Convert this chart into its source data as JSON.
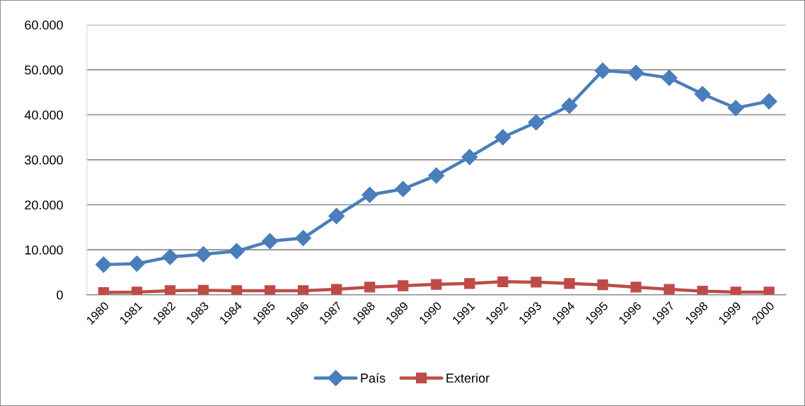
{
  "chart_data": {
    "type": "line",
    "categories": [
      "1980",
      "1981",
      "1982",
      "1983",
      "1984",
      "1985",
      "1986",
      "1987",
      "1988",
      "1989",
      "1990",
      "1991",
      "1992",
      "1993",
      "1994",
      "1995",
      "1996",
      "1997",
      "1998",
      "1999",
      "2000"
    ],
    "series": [
      {
        "name": "País",
        "color": "#4a7ebb",
        "marker": "diamond",
        "values": [
          6700,
          6900,
          8400,
          9000,
          9700,
          11900,
          12600,
          17500,
          22200,
          23500,
          26500,
          30600,
          35000,
          38300,
          42000,
          49800,
          49300,
          48200,
          44600,
          41500,
          43000
        ]
      },
      {
        "name": "Exterior",
        "color": "#be4b48",
        "marker": "square",
        "values": [
          500,
          600,
          900,
          1000,
          900,
          900,
          900,
          1200,
          1700,
          2000,
          2300,
          2500,
          2900,
          2800,
          2500,
          2200,
          1700,
          1200,
          800,
          600,
          600
        ]
      }
    ],
    "ylim": [
      0,
      60000
    ],
    "yticks": [
      0,
      {
        "value": 10000,
        "label": "10.000"
      },
      {
        "value": 20000,
        "label": "20.000"
      },
      {
        "value": 30000,
        "label": "30.000"
      },
      {
        "value": 40000,
        "label": "40.000"
      },
      {
        "value": 50000,
        "label": "50.000"
      },
      {
        "value": 60000,
        "label": "60.000"
      }
    ],
    "grid": "y",
    "legend": "bottom",
    "line_style": "solid"
  }
}
